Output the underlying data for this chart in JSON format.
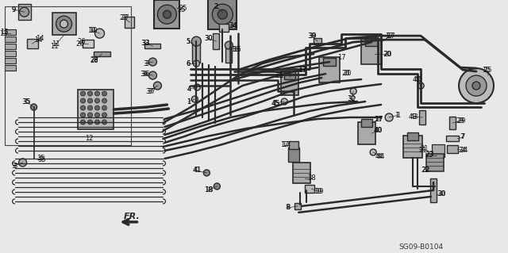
{
  "bg_color": "#e8e8e8",
  "line_color": "#2a2a2a",
  "footer_code": "SG09-B0104",
  "fig_w": 6.4,
  "fig_h": 3.19,
  "dpi": 100
}
